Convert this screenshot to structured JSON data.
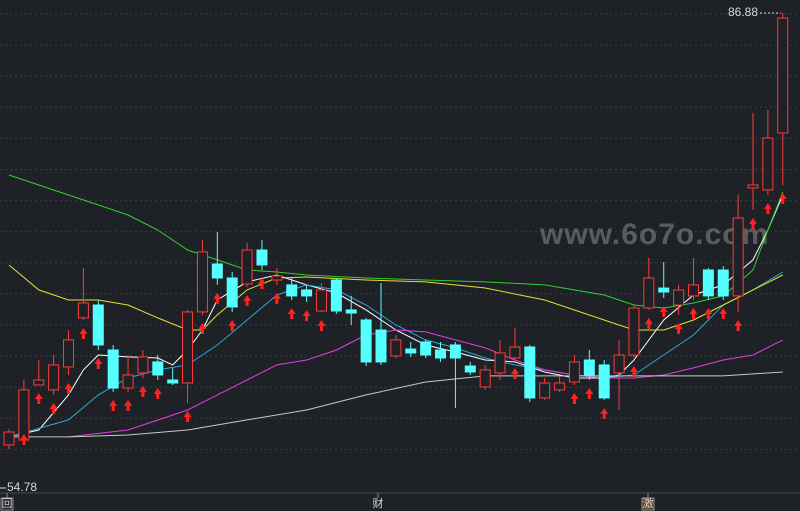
{
  "chart_data": {
    "type": "candlestick",
    "ylim": [
      54.78,
      86.88
    ],
    "up_color": "#ff3b3b",
    "down_color": "#54ffff",
    "ohlc": [
      [
        55.08,
        56.25,
        54.78,
        56.03
      ],
      [
        55.44,
        59.86,
        55.08,
        59.13
      ],
      [
        59.49,
        61.33,
        59.49,
        59.86
      ],
      [
        59.13,
        61.7,
        58.76,
        60.97
      ],
      [
        60.82,
        63.54,
        60.23,
        62.81
      ],
      [
        64.43,
        68.11,
        64.28,
        65.53
      ],
      [
        65.38,
        65.75,
        62.07,
        62.44
      ],
      [
        62.07,
        62.44,
        58.98,
        59.27
      ],
      [
        59.27,
        61.7,
        58.98,
        60.23
      ],
      [
        60.38,
        62.07,
        60.01,
        61.56
      ],
      [
        61.19,
        61.7,
        59.86,
        60.23
      ],
      [
        59.86,
        60.75,
        59.49,
        59.64
      ],
      [
        59.64,
        65.02,
        58.17,
        64.87
      ],
      [
        64.87,
        70.17,
        64.65,
        69.29
      ],
      [
        68.4,
        70.76,
        66.86,
        67.37
      ],
      [
        67.37,
        67.81,
        64.87,
        65.24
      ],
      [
        66.93,
        69.95,
        66.71,
        69.43
      ],
      [
        69.43,
        70.17,
        67.96,
        68.33
      ],
      [
        67.22,
        68.11,
        66.86,
        67.52
      ],
      [
        66.86,
        67.37,
        65.75,
        66.05
      ],
      [
        66.49,
        66.86,
        65.6,
        66.05
      ],
      [
        64.94,
        67.0,
        64.87,
        66.49
      ],
      [
        67.22,
        67.37,
        64.72,
        64.94
      ],
      [
        65.02,
        66.05,
        63.91,
        64.79
      ],
      [
        64.28,
        64.43,
        60.89,
        61.19
      ],
      [
        63.54,
        67.0,
        60.97,
        61.19
      ],
      [
        61.63,
        63.17,
        61.48,
        62.81
      ],
      [
        62.14,
        62.66,
        61.56,
        61.85
      ],
      [
        62.66,
        62.81,
        61.48,
        61.7
      ],
      [
        62.07,
        62.66,
        61.19,
        61.48
      ],
      [
        62.44,
        62.66,
        57.8,
        61.48
      ],
      [
        60.89,
        61.19,
        60.23,
        60.45
      ],
      [
        59.35,
        60.97,
        59.13,
        60.6
      ],
      [
        60.38,
        62.81,
        59.86,
        61.85
      ],
      [
        61.48,
        63.69,
        61.33,
        62.29
      ],
      [
        62.29,
        62.44,
        58.24,
        58.54
      ],
      [
        58.54,
        60.01,
        58.39,
        59.64
      ],
      [
        59.13,
        60.16,
        58.98,
        59.64
      ],
      [
        59.71,
        61.7,
        59.49,
        61.19
      ],
      [
        61.33,
        62.07,
        59.86,
        60.23
      ],
      [
        60.97,
        61.33,
        58.39,
        58.54
      ],
      [
        60.38,
        62.81,
        57.65,
        61.7
      ],
      [
        61.7,
        65.38,
        61.48,
        65.16
      ],
      [
        65.16,
        68.84,
        65.02,
        67.37
      ],
      [
        66.63,
        68.55,
        65.9,
        66.34
      ],
      [
        65.38,
        66.86,
        64.65,
        66.49
      ],
      [
        66.05,
        68.84,
        65.75,
        66.86
      ],
      [
        67.96,
        68.11,
        65.75,
        66.05
      ],
      [
        67.96,
        68.25,
        65.75,
        66.05
      ],
      [
        66.05,
        73.48,
        64.87,
        71.79
      ],
      [
        74.0,
        79.52,
        72.38,
        74.22
      ],
      [
        73.85,
        79.74,
        73.48,
        77.68
      ],
      [
        78.05,
        86.88,
        74.22,
        86.51
      ]
    ],
    "lines": [
      {
        "color": "#ffffff",
        "x": [
          0,
          2,
          4,
          5,
          6,
          8,
          10,
          11,
          12,
          13,
          14,
          16,
          18,
          20,
          22,
          24,
          26,
          28,
          30,
          32,
          34,
          36,
          38,
          40,
          41,
          42,
          44,
          46,
          48,
          50,
          51,
          52
        ],
        "values": [
          55.67,
          56.18,
          58.76,
          60.6,
          61.7,
          61.56,
          61.48,
          60.97,
          62.07,
          63.54,
          65.75,
          67.08,
          67.59,
          66.86,
          66.27,
          65.02,
          63.54,
          62.44,
          61.92,
          61.33,
          61.19,
          60.45,
          60.01,
          60.01,
          60.23,
          61.33,
          64.28,
          66.12,
          66.86,
          68.7,
          70.9,
          73.48
        ]
      },
      {
        "color": "#2aa8d8",
        "x": [
          0,
          4,
          6,
          8,
          10,
          12,
          14,
          16,
          18,
          20,
          22,
          24,
          26,
          28,
          30,
          32,
          34,
          36,
          38,
          40,
          42,
          44,
          46,
          48,
          50,
          52
        ],
        "values": [
          55.67,
          56.92,
          58.76,
          60.01,
          60.6,
          60.97,
          62.44,
          64.28,
          66.12,
          66.86,
          66.49,
          65.38,
          63.91,
          62.81,
          62.22,
          61.48,
          60.97,
          60.6,
          60.23,
          60.01,
          60.23,
          61.7,
          63.17,
          65.38,
          66.49,
          67.81
        ]
      },
      {
        "color": "#e040e0",
        "x": [
          4,
          8,
          12,
          14,
          16,
          18,
          20,
          22,
          24,
          26,
          28,
          30,
          32,
          34,
          36,
          38,
          40,
          42,
          44,
          46,
          48,
          50,
          52
        ],
        "values": [
          55.67,
          56.18,
          57.65,
          58.76,
          59.86,
          60.97,
          61.33,
          62.07,
          63.17,
          63.54,
          63.4,
          62.81,
          62.22,
          61.33,
          60.6,
          60.23,
          60.01,
          60.01,
          60.23,
          60.75,
          61.33,
          61.7,
          62.81
        ]
      },
      {
        "color": "#c8c8c8",
        "x": [
          0,
          4,
          8,
          12,
          16,
          20,
          24,
          28,
          32,
          36,
          40,
          44,
          48,
          52
        ],
        "values": [
          55.67,
          55.67,
          55.81,
          56.18,
          56.92,
          57.65,
          58.76,
          59.71,
          60.16,
          60.16,
          60.16,
          60.16,
          60.16,
          60.45
        ]
      },
      {
        "color": "#e8e030",
        "x": [
          0,
          2,
          4,
          6,
          8,
          10,
          12,
          13,
          14,
          16,
          18,
          20,
          24,
          28,
          32,
          36,
          40,
          42,
          44,
          46,
          48,
          50,
          52
        ],
        "values": [
          68.33,
          66.49,
          65.75,
          65.75,
          65.38,
          64.43,
          63.54,
          63.54,
          64.65,
          66.49,
          67.37,
          67.44,
          67.22,
          67.08,
          66.63,
          65.75,
          64.28,
          63.54,
          63.54,
          64.28,
          65.38,
          66.49,
          67.59
        ]
      },
      {
        "color": "#30d030",
        "x": [
          0,
          2,
          4,
          6,
          8,
          10,
          12,
          14,
          16,
          18,
          20,
          24,
          28,
          32,
          36,
          40,
          42,
          44,
          46,
          48,
          50,
          51,
          52
        ],
        "values": [
          74.95,
          74.22,
          73.48,
          72.75,
          72.01,
          70.9,
          69.43,
          68.7,
          67.96,
          67.81,
          67.59,
          67.37,
          67.22,
          67.08,
          66.86,
          66.12,
          65.38,
          65.16,
          65.53,
          66.05,
          67.96,
          70.9,
          73.7
        ]
      }
    ],
    "buy_signals": [
      1,
      2,
      3,
      4,
      5,
      6,
      7,
      8,
      9,
      10,
      12,
      13,
      14,
      15,
      16,
      17,
      18,
      19,
      20,
      21,
      34,
      38,
      39,
      40,
      42,
      43,
      44,
      45,
      46,
      47,
      48,
      49,
      50,
      51,
      52
    ],
    "watermark": "www.6o7o.com",
    "markers": [
      "回",
      "财",
      "激"
    ]
  }
}
